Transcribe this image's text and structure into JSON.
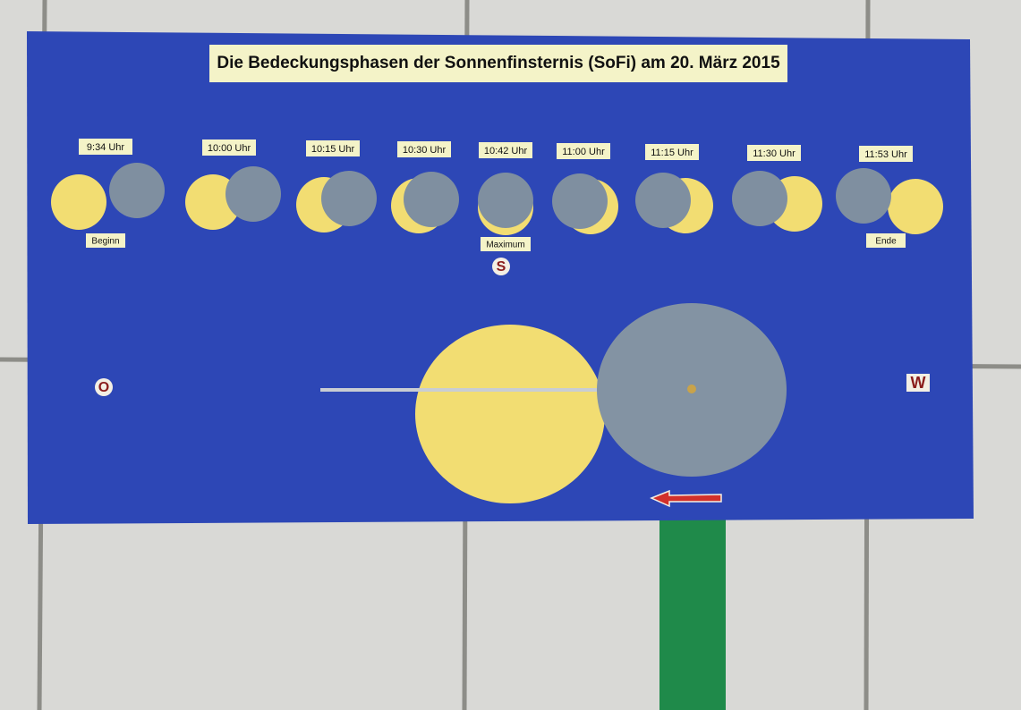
{
  "title": "Die Bedeckungsphasen der Sonnenfinsternis (SoFi) am 20. März 2015",
  "phases": [
    {
      "time": "9:34 Uhr",
      "label": "Beginn"
    },
    {
      "time": "10:00 Uhr"
    },
    {
      "time": "10:15 Uhr"
    },
    {
      "time": "10:30 Uhr"
    },
    {
      "time": "10:42 Uhr",
      "label": "Maximum"
    },
    {
      "time": "11:00 Uhr"
    },
    {
      "time": "11:15 Uhr"
    },
    {
      "time": "11:30 Uhr"
    },
    {
      "time": "11:53 Uhr",
      "label": "Ende"
    }
  ],
  "directions": {
    "east": "O",
    "south": "S",
    "west": "W"
  }
}
